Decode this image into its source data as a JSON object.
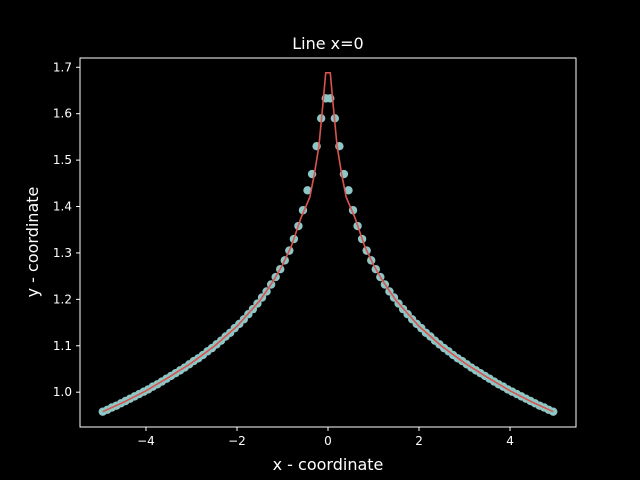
{
  "chart_data": {
    "type": "line",
    "title": "Line x=0",
    "xlabel": "x - coordinate",
    "ylabel": "y - coordinate",
    "xlim": [
      -5.45,
      5.45
    ],
    "ylim": [
      0.925,
      1.72
    ],
    "xticks": [
      -4,
      -2,
      0,
      2,
      4
    ],
    "xtick_labels": [
      "−4",
      "−2",
      "0",
      "2",
      "4"
    ],
    "yticks": [
      1.0,
      1.1,
      1.2,
      1.3,
      1.4,
      1.5,
      1.6,
      1.7
    ],
    "ytick_labels": [
      "1.0",
      "1.1",
      "1.2",
      "1.3",
      "1.4",
      "1.5",
      "1.6",
      "1.7"
    ],
    "grid": false,
    "colors": {
      "background": "#000000",
      "axes": "#ffffff",
      "points": "#8ec6c5",
      "line": "#d9534f"
    },
    "series": [
      {
        "kind": "scatter",
        "x": [
          -4.95,
          -4.85,
          -4.75,
          -4.65,
          -4.55,
          -4.45,
          -4.35,
          -4.25,
          -4.15,
          -4.05,
          -3.95,
          -3.85,
          -3.75,
          -3.65,
          -3.55,
          -3.45,
          -3.35,
          -3.25,
          -3.15,
          -3.05,
          -2.95,
          -2.85,
          -2.75,
          -2.65,
          -2.55,
          -2.45,
          -2.35,
          -2.25,
          -2.15,
          -2.05,
          -1.95,
          -1.85,
          -1.75,
          -1.65,
          -1.55,
          -1.45,
          -1.35,
          -1.25,
          -1.15,
          -1.05,
          -0.95,
          -0.85,
          -0.75,
          -0.65,
          -0.55,
          -0.45,
          -0.35,
          -0.25,
          -0.15,
          -0.05,
          0.05,
          0.15,
          0.25,
          0.35,
          0.45,
          0.55,
          0.65,
          0.75,
          0.85,
          0.95,
          1.05,
          1.15,
          1.25,
          1.35,
          1.45,
          1.55,
          1.65,
          1.75,
          1.85,
          1.95,
          2.05,
          2.15,
          2.25,
          2.35,
          2.45,
          2.55,
          2.65,
          2.75,
          2.85,
          2.95,
          3.05,
          3.15,
          3.25,
          3.35,
          3.45,
          3.55,
          3.65,
          3.75,
          3.85,
          3.95,
          4.05,
          4.15,
          4.25,
          4.35,
          4.45,
          4.55,
          4.65,
          4.75,
          4.85,
          4.95
        ],
        "y": [
          0.958,
          0.962,
          0.967,
          0.971,
          0.976,
          0.981,
          0.986,
          0.991,
          0.996,
          1.001,
          1.006,
          1.012,
          1.017,
          1.023,
          1.029,
          1.035,
          1.041,
          1.047,
          1.053,
          1.06,
          1.067,
          1.073,
          1.08,
          1.088,
          1.095,
          1.103,
          1.111,
          1.12,
          1.128,
          1.138,
          1.147,
          1.157,
          1.168,
          1.179,
          1.191,
          1.204,
          1.217,
          1.232,
          1.248,
          1.265,
          1.284,
          1.305,
          1.33,
          1.358,
          1.392,
          1.435,
          1.47,
          1.53,
          1.59,
          1.633,
          1.633,
          1.59,
          1.53,
          1.47,
          1.435,
          1.392,
          1.358,
          1.33,
          1.305,
          1.284,
          1.265,
          1.248,
          1.232,
          1.217,
          1.204,
          1.191,
          1.179,
          1.168,
          1.157,
          1.147,
          1.138,
          1.128,
          1.12,
          1.111,
          1.103,
          1.095,
          1.088,
          1.08,
          1.073,
          1.067,
          1.06,
          1.053,
          1.047,
          1.041,
          1.035,
          1.029,
          1.023,
          1.017,
          1.012,
          1.006,
          1.001,
          0.996,
          0.991,
          0.986,
          0.981,
          0.976,
          0.971,
          0.967,
          0.962,
          0.958
        ]
      },
      {
        "kind": "line",
        "x": [
          -4.95,
          -4.5,
          -4.0,
          -3.5,
          -3.0,
          -2.5,
          -2.0,
          -1.5,
          -1.2,
          -1.0,
          -0.8,
          -0.6,
          -0.4,
          -0.3,
          -0.2,
          -0.1,
          -0.05,
          0.05,
          0.1,
          0.2,
          0.3,
          0.4,
          0.6,
          0.8,
          1.0,
          1.2,
          1.5,
          2.0,
          2.5,
          3.0,
          3.5,
          4.0,
          4.5,
          4.95
        ],
        "y": [
          0.958,
          0.978,
          1.003,
          1.032,
          1.063,
          1.099,
          1.142,
          1.197,
          1.24,
          1.274,
          1.316,
          1.374,
          1.42,
          1.47,
          1.53,
          1.633,
          1.688,
          1.688,
          1.633,
          1.53,
          1.47,
          1.42,
          1.374,
          1.316,
          1.274,
          1.24,
          1.197,
          1.142,
          1.099,
          1.063,
          1.032,
          1.003,
          0.978,
          0.958
        ]
      }
    ]
  }
}
